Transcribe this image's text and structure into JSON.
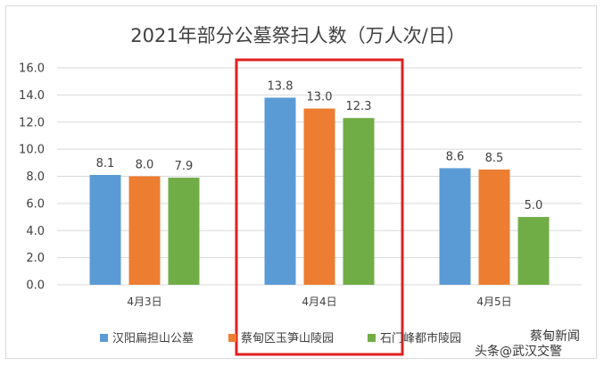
{
  "chart_data": {
    "type": "bar",
    "title": "2021年部分公墓祭扫人数（万人次/日）",
    "categories": [
      "4月3日",
      "4月4日",
      "4月5日"
    ],
    "series": [
      {
        "name": "汉阳扁担山公墓",
        "values": [
          8.1,
          13.8,
          8.6
        ],
        "labels": [
          "8.1",
          "13.8",
          "8.6"
        ],
        "color": "#5b9bd5"
      },
      {
        "name": "蔡甸区玉笋山陵园",
        "values": [
          8.0,
          13.0,
          8.5
        ],
        "labels": [
          "8.0",
          "13.0",
          "8.5"
        ],
        "color": "#ed7d31"
      },
      {
        "name": "石门峰都市陵园",
        "values": [
          7.9,
          12.3,
          5.0
        ],
        "labels": [
          "7.9",
          "12.3",
          "5.0"
        ],
        "color": "#70ad47"
      }
    ],
    "ylim": [
      0,
      16
    ],
    "yticks": [
      "0.0",
      "2.0",
      "4.0",
      "6.0",
      "8.0",
      "10.0",
      "12.0",
      "14.0",
      "16.0"
    ],
    "grid": true,
    "legend_position": "bottom",
    "highlight": {
      "category": "4月4日",
      "color": "#e02020"
    },
    "gridline_color": "#d9d9d9"
  },
  "watermark": {
    "text": "头条@武汉交警",
    "text2": "蔡甸新闻"
  }
}
